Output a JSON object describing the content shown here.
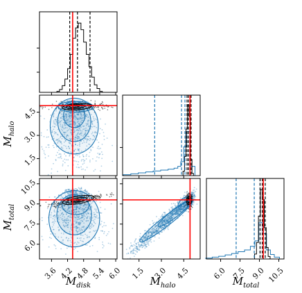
{
  "chart_data": {
    "type": "corner",
    "variables": [
      {
        "symbol": "M",
        "sub": "disk",
        "range": [
          3.15,
          6.05
        ],
        "ticks": [
          3.6,
          4.2,
          4.8,
          5.4,
          6.0
        ],
        "tick_labels": [
          "3.6",
          "4.2",
          "4.8",
          "5.4",
          "6.0"
        ],
        "truth": 4.39,
        "quantiles": [
          4.28,
          4.57,
          5.04
        ]
      },
      {
        "symbol": "M",
        "sub": "halo",
        "range": [
          0.4,
          5.6
        ],
        "ticks": [
          1.5,
          3.0,
          4.5
        ],
        "tick_labels": [
          "1.5",
          "3.0",
          "4.5"
        ],
        "y_ticks": [
          1.5,
          3.0,
          4.5
        ],
        "y_tick_labels": [
          "1.5",
          "3.0",
          "4.5"
        ],
        "truth": 4.92,
        "quantiles_black": [
          4.72,
          4.82,
          4.99
        ],
        "quantiles_blue": [
          2.55,
          4.35,
          4.58
        ]
      },
      {
        "symbol": "M",
        "sub": "total",
        "range": [
          4.9,
          10.9
        ],
        "ticks": [
          6.0,
          7.5,
          9.0,
          10.5
        ],
        "tick_labels": [
          "6.0",
          "7.5",
          "9.0",
          "10.5"
        ],
        "y_ticks": [
          6.0,
          7.5,
          9.0,
          10.5
        ],
        "y_tick_labels": [
          "6.0",
          "7.5",
          "9.0",
          "10.5"
        ],
        "truth": 9.3,
        "quantiles_black": [
          9.05,
          9.22,
          9.45
        ],
        "quantiles_blue": [
          7.2,
          8.6,
          9.05
        ]
      }
    ],
    "marginal_disk": {
      "bins": [
        3.85,
        3.95,
        4.05,
        4.15,
        4.25,
        4.35,
        4.45,
        4.55,
        4.65,
        4.75,
        4.85,
        4.95,
        5.05,
        5.15,
        5.25,
        5.35,
        5.45
      ],
      "counts": [
        1,
        3,
        7,
        14,
        25,
        40,
        57,
        68,
        73,
        66,
        53,
        40,
        27,
        16,
        8,
        4,
        1
      ]
    },
    "marginal_halo_black": {
      "bins": [
        4.5,
        4.6,
        4.7,
        4.8,
        4.9,
        5.0,
        5.1
      ],
      "counts": [
        6,
        26,
        63,
        96,
        80,
        22,
        3
      ]
    },
    "marginal_halo_blue": {
      "bins": [
        0.7,
        1.2,
        1.7,
        2.2,
        2.7,
        3.2,
        3.7,
        4.0,
        4.2,
        4.4,
        4.6,
        4.8,
        5.0
      ],
      "counts": [
        2,
        4,
        6,
        8,
        10,
        12,
        14,
        16,
        20,
        30,
        62,
        95,
        20
      ]
    },
    "marginal_total_black": {
      "bins": [
        8.7,
        8.85,
        9.0,
        9.15,
        9.3,
        9.45,
        9.6,
        9.75
      ],
      "counts": [
        6,
        20,
        52,
        84,
        72,
        38,
        14,
        3
      ]
    },
    "marginal_total_blue": {
      "bins": [
        5.1,
        5.6,
        6.1,
        6.6,
        7.1,
        7.6,
        8.1,
        8.5,
        8.8,
        9.1,
        9.4,
        9.7,
        10.0,
        10.3
      ],
      "counts": [
        2,
        4,
        6,
        9,
        12,
        16,
        20,
        28,
        40,
        80,
        56,
        20,
        10,
        4
      ]
    },
    "colors": {
      "black": "#000000",
      "blue": "#1f77b4",
      "truth": "#ff0000"
    }
  }
}
